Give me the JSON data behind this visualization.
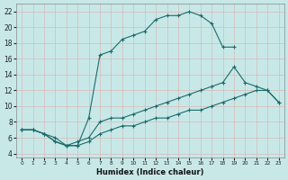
{
  "xlabel": "Humidex (Indice chaleur)",
  "background_color": "#c8e8e8",
  "grid_color": "#aacccc",
  "line_color": "#1a6b6b",
  "xlim": [
    -0.5,
    23.5
  ],
  "ylim": [
    3.5,
    23
  ],
  "xticks": [
    0,
    1,
    2,
    3,
    4,
    5,
    6,
    7,
    8,
    9,
    10,
    11,
    12,
    13,
    14,
    15,
    16,
    17,
    18,
    19,
    20,
    21,
    22,
    23
  ],
  "yticks": [
    4,
    6,
    8,
    10,
    12,
    14,
    16,
    18,
    20,
    22
  ],
  "curve1_x": [
    0,
    1,
    2,
    3,
    4,
    5,
    6,
    7,
    8,
    9,
    10,
    11,
    12,
    13,
    14,
    15,
    16,
    17,
    18,
    19
  ],
  "curve1_y": [
    7,
    7,
    6.5,
    6,
    5,
    5,
    8.5,
    16.5,
    17,
    18.5,
    19,
    19.5,
    21,
    21.5,
    21.5,
    22,
    21.5,
    20.5,
    17.5,
    17.5
  ],
  "curve2_x": [
    0,
    1,
    2,
    3,
    4,
    5,
    6,
    7,
    8,
    9,
    10,
    11,
    12,
    13,
    14,
    15,
    16,
    17,
    18,
    19,
    20,
    21,
    22,
    23
  ],
  "curve2_y": [
    7,
    7,
    6.5,
    5.5,
    5,
    5.5,
    6,
    8,
    8.5,
    8.5,
    9,
    9.5,
    10,
    10.5,
    11,
    11.5,
    12,
    12.5,
    13,
    15,
    13,
    12.5,
    12,
    10.5
  ],
  "curve3_x": [
    0,
    1,
    2,
    3,
    4,
    5,
    6,
    7,
    8,
    9,
    10,
    11,
    12,
    13,
    14,
    15,
    16,
    17,
    18,
    19,
    20,
    21,
    22,
    23
  ],
  "curve3_y": [
    7,
    7,
    6.5,
    5.5,
    5,
    5,
    5.5,
    6.5,
    7,
    7.5,
    7.5,
    8,
    8.5,
    8.5,
    9,
    9.5,
    9.5,
    10,
    10.5,
    11,
    11.5,
    12,
    12,
    10.5
  ]
}
